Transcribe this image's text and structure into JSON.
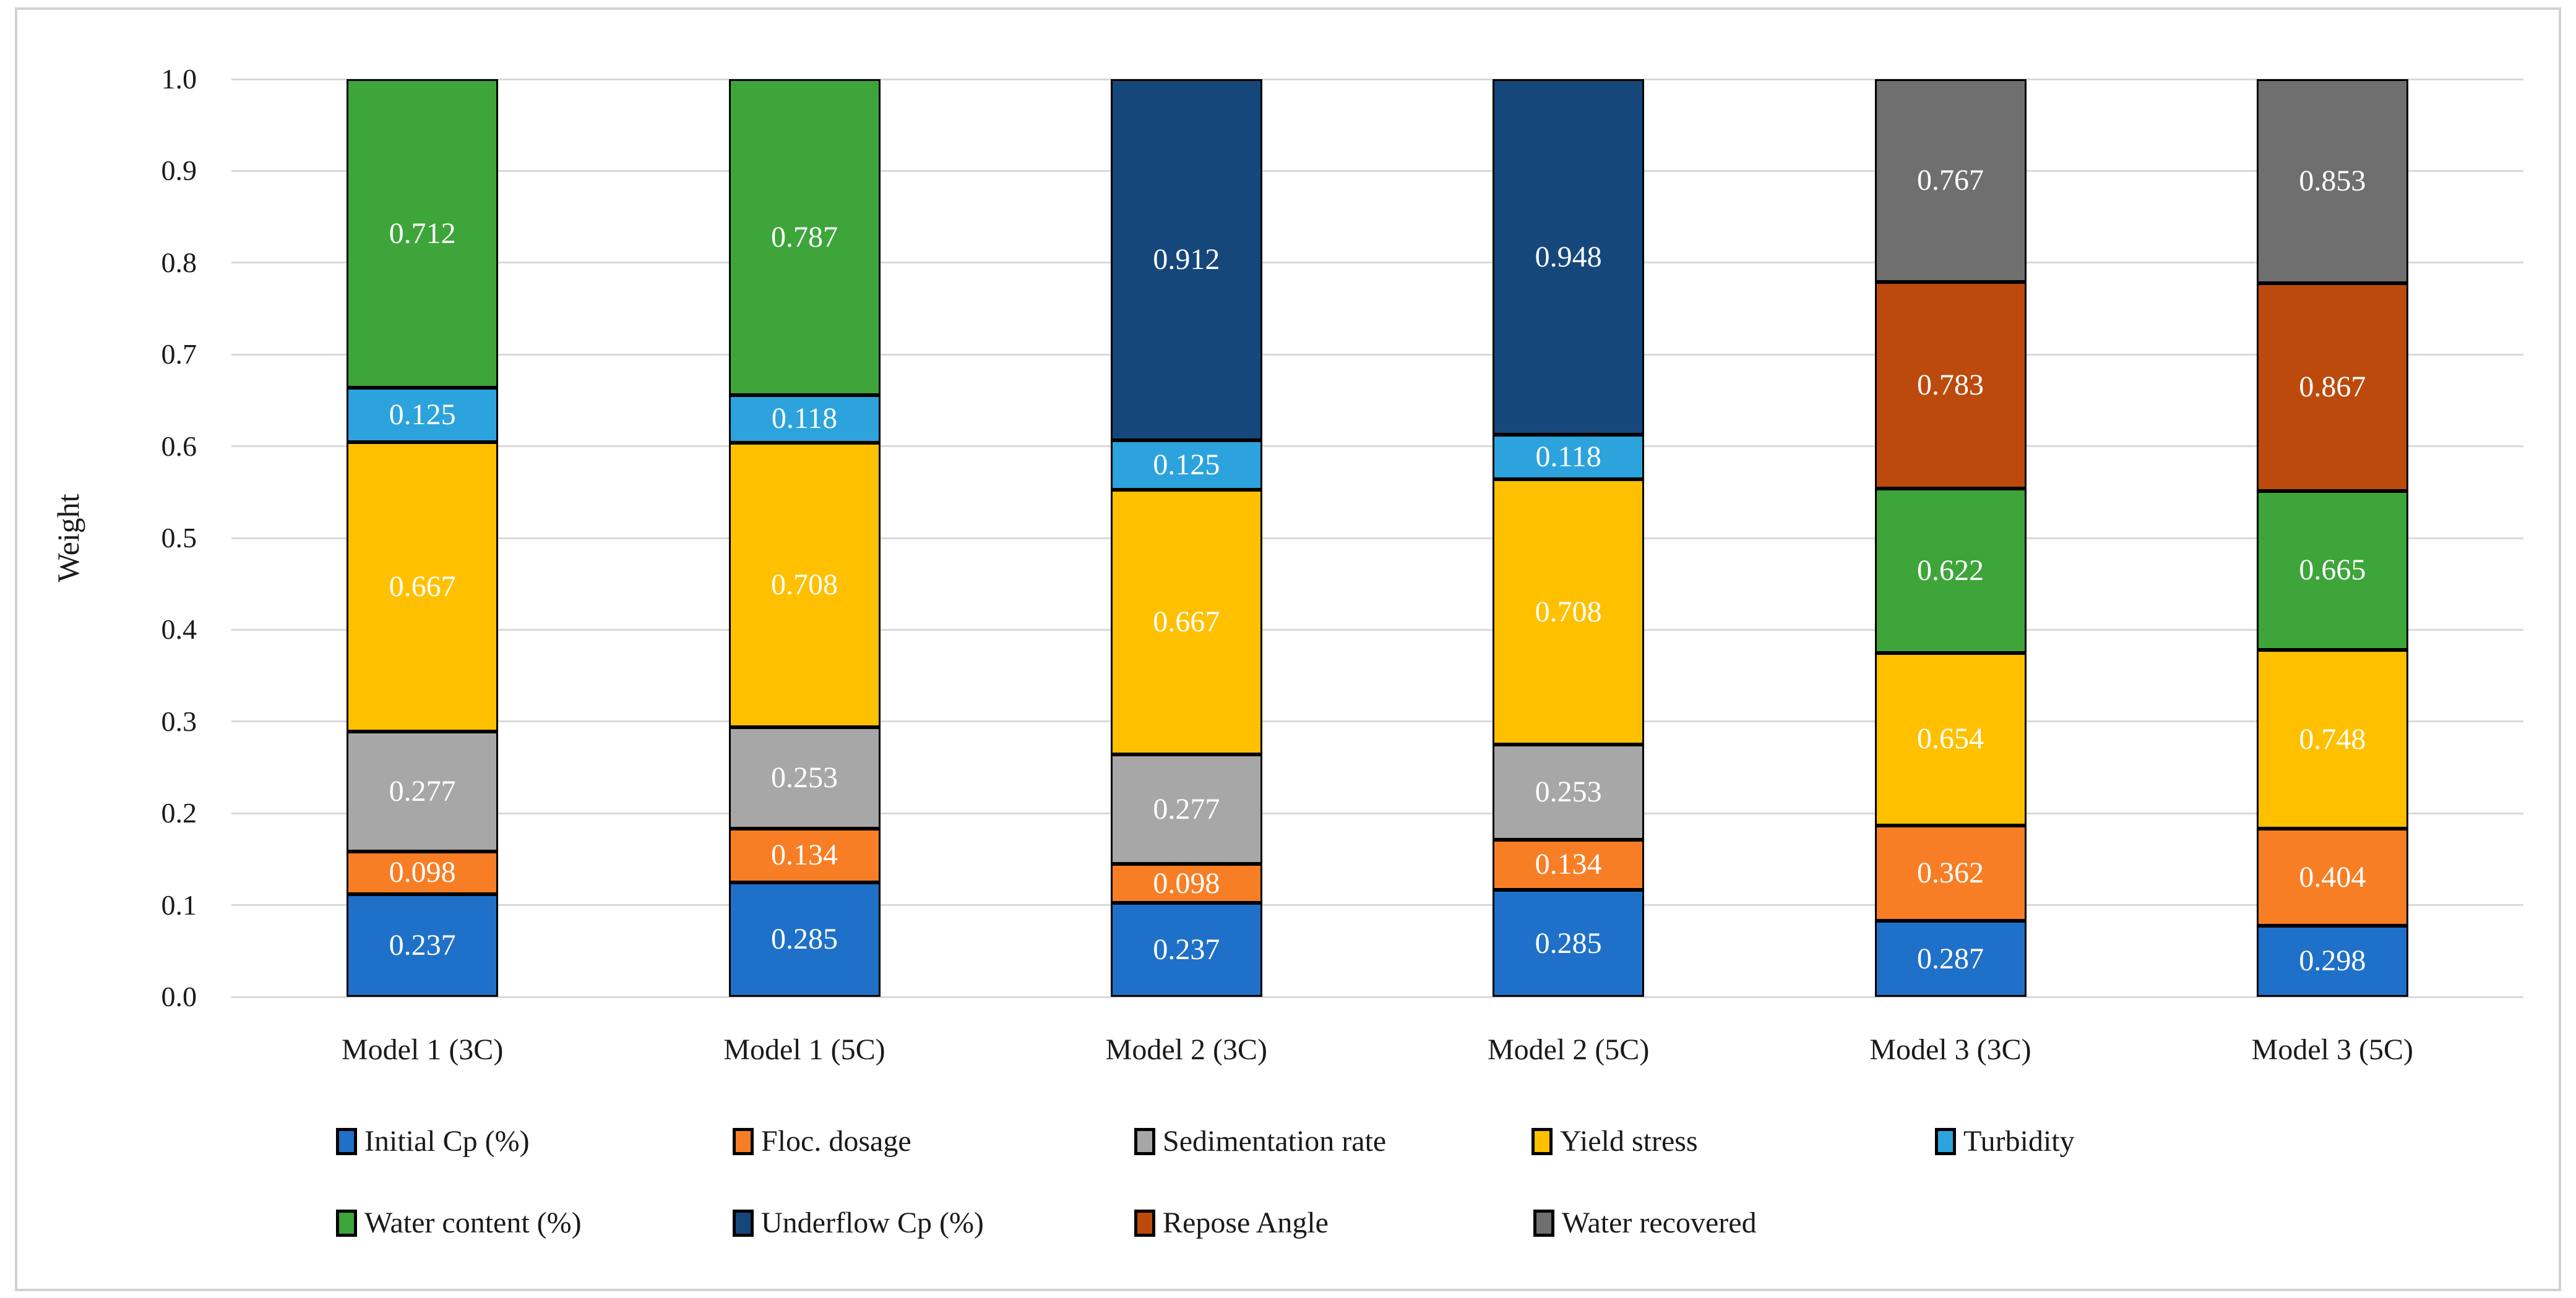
{
  "chart_data": {
    "type": "bar",
    "stacked": true,
    "normalized_to_one": true,
    "title": "",
    "xlabel": "",
    "ylabel": "Weight",
    "ylim": [
      0.0,
      1.0
    ],
    "yticks": [
      1.0,
      0.9,
      0.8,
      0.7,
      0.6,
      0.5,
      0.4,
      0.3,
      0.2,
      0.1,
      0.0
    ],
    "grid": true,
    "grid_color": "#d9d9d9",
    "frame_border_color": "#d2d2d2",
    "segment_border_color": "#000000",
    "value_label_color": "#ffffff",
    "axis_text_color": "#1a1a1a",
    "categories": [
      "Model 1 (3C)",
      "Model 1 (5C)",
      "Model 2 (3C)",
      "Model 2 (5C)",
      "Model 3 (3C)",
      "Model 3 (5C)"
    ],
    "series": [
      {
        "name": "Initial Cp (%)",
        "color": "#1f70c8",
        "values": [
          0.237,
          0.285,
          0.237,
          0.285,
          0.287,
          0.298
        ]
      },
      {
        "name": "Floc. dosage",
        "color": "#f87e26",
        "values": [
          0.098,
          0.134,
          0.098,
          0.134,
          0.362,
          0.404
        ]
      },
      {
        "name": "Sedimentation rate",
        "color": "#a7a7a7",
        "values": [
          0.277,
          0.253,
          0.277,
          0.253,
          null,
          null
        ]
      },
      {
        "name": "Yield stress",
        "color": "#ffc000",
        "values": [
          0.667,
          0.708,
          0.667,
          0.708,
          0.654,
          0.748
        ]
      },
      {
        "name": "Turbidity",
        "color": "#2ca3dc",
        "values": [
          0.125,
          0.118,
          0.125,
          0.118,
          null,
          null
        ]
      },
      {
        "name": "Water content (%)",
        "color": "#3da53a",
        "values": [
          0.712,
          0.787,
          null,
          null,
          0.622,
          0.665
        ]
      },
      {
        "name": "Underflow Cp (%)",
        "color": "#16477b",
        "values": [
          null,
          null,
          0.912,
          0.948,
          null,
          null
        ]
      },
      {
        "name": "Repose Angle",
        "color": "#bc4a0c",
        "values": [
          null,
          null,
          null,
          null,
          0.783,
          0.867
        ]
      },
      {
        "name": "Water recovered",
        "color": "#6f6f6f",
        "values": [
          null,
          null,
          null,
          null,
          0.767,
          0.853
        ]
      }
    ],
    "legend": {
      "position": "bottom",
      "rows": [
        [
          "Initial Cp (%)",
          "Floc. dosage",
          "Sedimentation rate",
          "Yield stress",
          "Turbidity"
        ],
        [
          "Water content (%)",
          "Underflow Cp (%)",
          "Repose Angle",
          "Water recovered"
        ]
      ]
    }
  }
}
